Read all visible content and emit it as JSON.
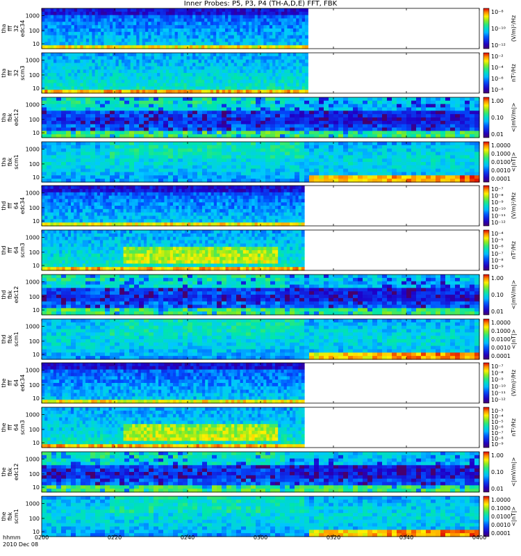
{
  "title": "Inner Probes: P5, P3, P4 (TH-A,D,E) FFT, FBK",
  "footer": {
    "time_label": "hhmm",
    "date_label": "2010 Dec 08",
    "x_ticks": [
      "0200",
      "0220",
      "0240",
      "0300",
      "0320",
      "0340",
      "0400"
    ]
  },
  "chart_data": {
    "type": "heatmap",
    "x_range": [
      "02:00",
      "04:00"
    ],
    "panels": [
      {
        "ylabel": [
          "tha",
          "fff",
          "32",
          "edc34"
        ],
        "yticks": [
          "1000",
          "100",
          "10"
        ],
        "yscale": "log",
        "kind": "fff_e",
        "cb_ticks": [
          "10⁻⁸",
          "10⁻¹⁰",
          "10⁻¹²"
        ],
        "cb_label": "(V/m)²/Hz",
        "data_end": "03:13"
      },
      {
        "ylabel": [
          "tha",
          "fff",
          "32",
          "scm3"
        ],
        "yticks": [
          "1000",
          "100",
          "10"
        ],
        "yscale": "log",
        "kind": "fff_b",
        "cb_ticks": [
          "10⁻²",
          "10⁻⁴",
          "10⁻⁶",
          "10⁻⁸"
        ],
        "cb_label": "nT²/Hz",
        "data_end": "03:13"
      },
      {
        "ylabel": [
          "tha",
          "fbk",
          "edc12"
        ],
        "yticks": [
          "1000",
          "100",
          "10"
        ],
        "yscale": "log",
        "kind": "fbk_e",
        "cb_ticks": [
          "1.00",
          "0.10",
          "0.01"
        ],
        "cb_label": "<|mV/m|>",
        "data_end": "04:00"
      },
      {
        "ylabel": [
          "tha",
          "fbk",
          "scm1"
        ],
        "yticks": [
          "1000",
          "100",
          "10"
        ],
        "yscale": "log",
        "kind": "fbk_b",
        "cb_ticks": [
          "1.0000",
          "0.1000",
          "0.0100",
          "0.0010",
          "0.0001"
        ],
        "cb_label": "<|nT|>",
        "data_end": "04:00"
      },
      {
        "ylabel": [
          "thd",
          "fff",
          "64",
          "edc34"
        ],
        "yticks": [
          "1000",
          "100",
          "10"
        ],
        "yscale": "log",
        "kind": "fff_e2",
        "cb_ticks": [
          "10⁻⁷",
          "10⁻⁸",
          "10⁻⁹",
          "10⁻¹⁰",
          "10⁻¹¹",
          "10⁻¹²"
        ],
        "cb_label": "(V/m)²/Hz",
        "data_end": "03:12"
      },
      {
        "ylabel": [
          "thd",
          "fff",
          "64",
          "scm3"
        ],
        "yticks": [
          "1000",
          "100",
          "10"
        ],
        "yscale": "log",
        "kind": "fff_b2",
        "cb_ticks": [
          "10⁻⁴",
          "10⁻⁵",
          "10⁻⁶",
          "10⁻⁷",
          "10⁻⁸",
          "10⁻⁹"
        ],
        "cb_label": "nT²/Hz",
        "data_end": "03:12"
      },
      {
        "ylabel": [
          "thd",
          "fbk",
          "edc12"
        ],
        "yticks": [
          "1000",
          "100",
          "10"
        ],
        "yscale": "log",
        "kind": "fbk_e",
        "cb_ticks": [
          "1.00",
          "0.10",
          "0.01"
        ],
        "cb_label": "<|mV/m|>",
        "data_end": "04:00"
      },
      {
        "ylabel": [
          "thd",
          "fbk",
          "scm1"
        ],
        "yticks": [
          "1000",
          "100",
          "10"
        ],
        "yscale": "log",
        "kind": "fbk_b",
        "cb_ticks": [
          "1.0000",
          "0.1000",
          "0.0100",
          "0.0010",
          "0.0001"
        ],
        "cb_label": "<|nT|>",
        "data_end": "04:00"
      },
      {
        "ylabel": [
          "the",
          "fff",
          "64",
          "edc34"
        ],
        "yticks": [
          "1000",
          "100",
          "10"
        ],
        "yscale": "log",
        "kind": "fff_e2",
        "cb_ticks": [
          "10⁻⁷",
          "10⁻⁸",
          "10⁻⁹",
          "10⁻¹⁰",
          "10⁻¹¹",
          "10⁻¹²"
        ],
        "cb_label": "(V/m)²/Hz",
        "data_end": "03:12"
      },
      {
        "ylabel": [
          "the",
          "fff",
          "64",
          "scm3"
        ],
        "yticks": [
          "1000",
          "100",
          "10"
        ],
        "yscale": "log",
        "kind": "fff_b2",
        "cb_ticks": [
          "10⁻³",
          "10⁻⁴",
          "10⁻⁵",
          "10⁻⁶",
          "10⁻⁷",
          "10⁻⁸",
          "10⁻⁹"
        ],
        "cb_label": "nT²/Hz",
        "data_end": "03:12"
      },
      {
        "ylabel": [
          "the",
          "fbk",
          "edc12"
        ],
        "yticks": [
          "1000",
          "100",
          "10"
        ],
        "yscale": "log",
        "kind": "fbk_e",
        "cb_ticks": [
          "1.00",
          "0.10",
          "0.01"
        ],
        "cb_label": "<|mV/m|>",
        "data_end": "04:00"
      },
      {
        "ylabel": [
          "the",
          "fbk",
          "scm1"
        ],
        "yticks": [
          "1000",
          "100",
          "10"
        ],
        "yscale": "log",
        "kind": "fbk_b",
        "cb_ticks": [
          "1.0000",
          "0.1000",
          "0.0100",
          "0.0010",
          "0.0001"
        ],
        "cb_label": "<|nT|>",
        "data_end": "04:00"
      }
    ]
  }
}
